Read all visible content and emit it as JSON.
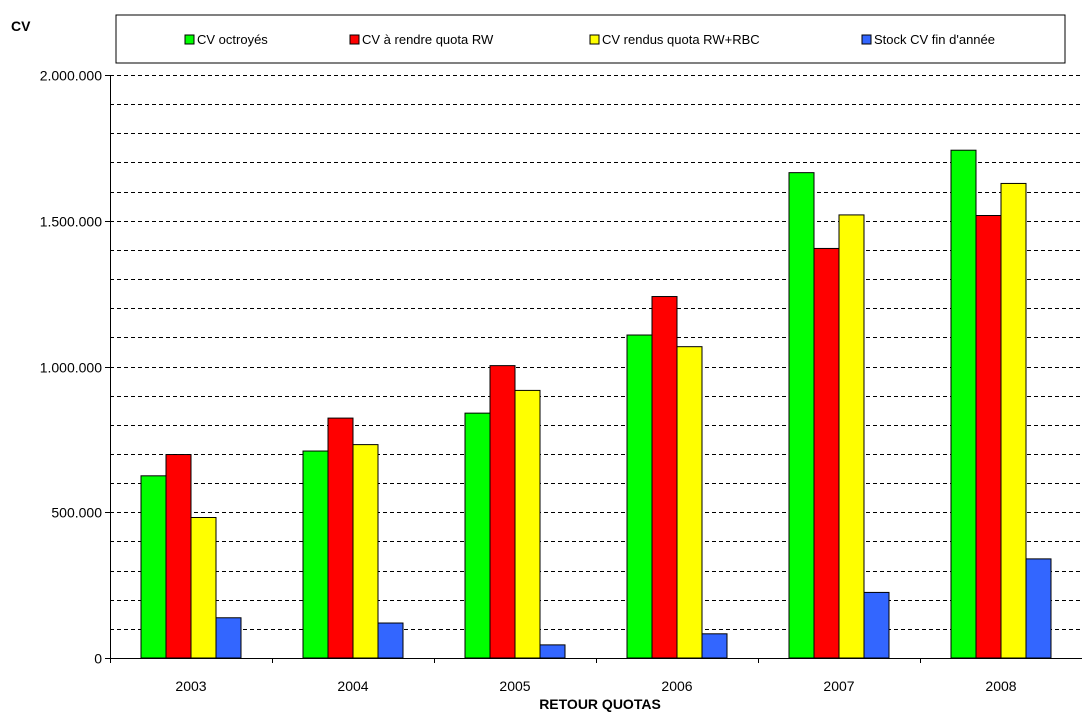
{
  "chart_data": {
    "type": "bar",
    "title": "",
    "ylabel": "CV",
    "xlabel": "RETOUR QUOTAS",
    "categories": [
      "2003",
      "2004",
      "2005",
      "2006",
      "2007",
      "2008"
    ],
    "ylim": [
      0,
      2000000
    ],
    "yticks": [
      0,
      500000,
      1000000,
      1500000,
      2000000
    ],
    "ytick_labels": [
      "0",
      "500.000",
      "1.000.000",
      "1.500.000",
      "2.000.000"
    ],
    "minor_grid_step": 100000,
    "grid": "horizontal dashed",
    "legend_position": "top",
    "series": [
      {
        "name": "CV octroyés",
        "color": "#00ff00",
        "values": [
          625000,
          710000,
          840000,
          1108000,
          1665000,
          1742000
        ]
      },
      {
        "name": "CV à rendre quota RW",
        "color": "#ff0000",
        "values": [
          698000,
          823000,
          1003000,
          1240000,
          1405000,
          1518000
        ]
      },
      {
        "name": "CV rendus quota RW+RBC",
        "color": "#ffff00",
        "values": [
          482000,
          732000,
          918000,
          1068000,
          1520000,
          1628000
        ]
      },
      {
        "name": "Stock CV fin d'année",
        "color": "#3366ff",
        "values": [
          138000,
          120000,
          45000,
          83000,
          225000,
          340000
        ]
      }
    ]
  }
}
